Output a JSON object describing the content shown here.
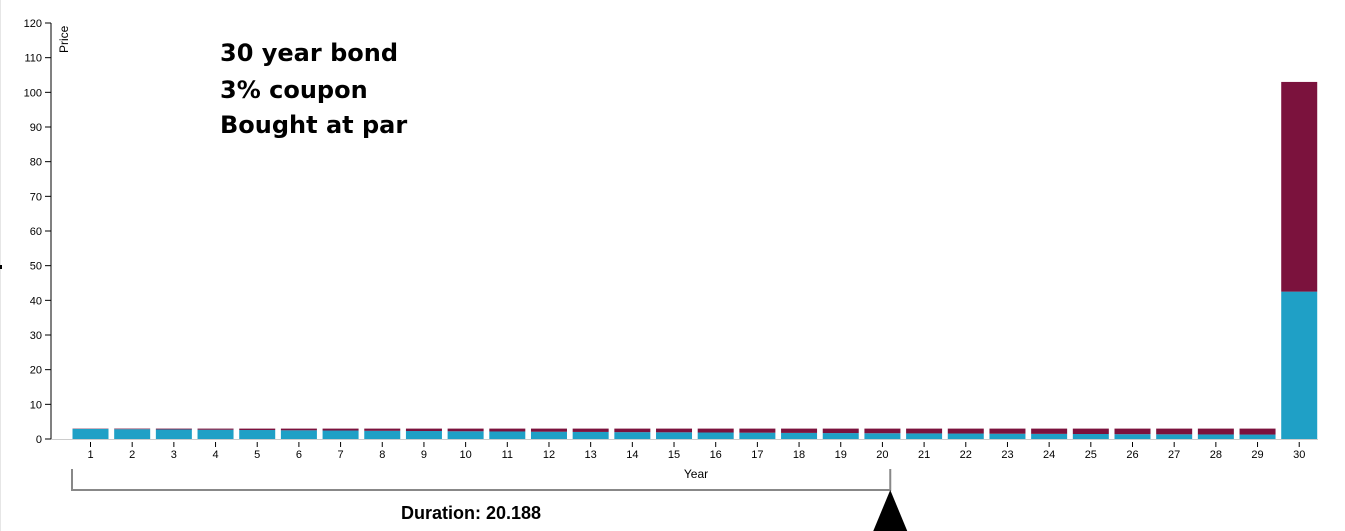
{
  "chart_data": {
    "type": "bar",
    "stacked": true,
    "ylabel": "Price",
    "xlabel": "Year",
    "ylim": [
      0,
      120
    ],
    "yticks": [
      0,
      10,
      20,
      30,
      40,
      50,
      60,
      70,
      80,
      90,
      100,
      110,
      120
    ],
    "categories": [
      "1",
      "2",
      "3",
      "4",
      "5",
      "6",
      "7",
      "8",
      "9",
      "10",
      "11",
      "12",
      "13",
      "14",
      "15",
      "16",
      "17",
      "18",
      "19",
      "20",
      "21",
      "22",
      "23",
      "24",
      "25",
      "26",
      "27",
      "28",
      "29",
      "30"
    ],
    "series": [
      {
        "color": "#1fa0c6",
        "values": [
          2.91,
          2.83,
          2.75,
          2.67,
          2.59,
          2.51,
          2.44,
          2.37,
          2.3,
          2.23,
          2.17,
          2.1,
          2.04,
          1.98,
          1.93,
          1.87,
          1.82,
          1.76,
          1.71,
          1.66,
          1.61,
          1.57,
          1.52,
          1.48,
          1.44,
          1.39,
          1.35,
          1.31,
          1.28,
          42.51
        ]
      },
      {
        "color": "#7b123d",
        "values": [
          0.09,
          0.17,
          0.25,
          0.33,
          0.41,
          0.49,
          0.56,
          0.63,
          0.7,
          0.77,
          0.83,
          0.9,
          0.96,
          1.02,
          1.07,
          1.13,
          1.18,
          1.24,
          1.29,
          1.34,
          1.39,
          1.43,
          1.48,
          1.52,
          1.56,
          1.61,
          1.65,
          1.69,
          1.72,
          60.49
        ]
      }
    ],
    "annotations": [
      "30 year bond",
      "3% coupon",
      "Bought at par"
    ],
    "duration": {
      "label": "Duration: 20.188",
      "value": 20.188
    }
  }
}
